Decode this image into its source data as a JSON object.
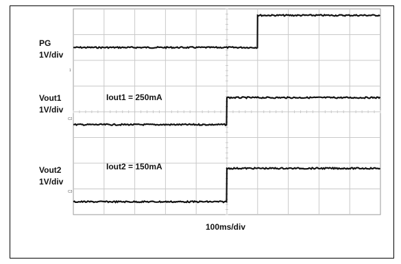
{
  "chart_data": {
    "type": "line",
    "channels": [
      {
        "name": "PG",
        "scale": "1V/div",
        "marker": "1",
        "annotation": "",
        "offset_div": 6.5,
        "steps": [
          [
            0,
            0
          ],
          [
            6,
            1.25
          ],
          [
            10,
            1.25
          ]
        ]
      },
      {
        "name": "Vout1",
        "scale": "1V/div",
        "marker": "C2",
        "annotation": "Iout1 = 250mA",
        "offset_div": 3.5,
        "steps": [
          [
            0,
            0
          ],
          [
            5,
            1.05
          ],
          [
            10,
            1.05
          ]
        ]
      },
      {
        "name": "Vout2",
        "scale": "1V/div",
        "marker": "C3",
        "annotation": "Iout2 = 150mA",
        "offset_div": 0.5,
        "steps": [
          [
            0,
            0
          ],
          [
            5,
            1.3
          ],
          [
            10,
            1.3
          ]
        ]
      }
    ],
    "x_divisions": 10,
    "y_divisions": 8,
    "xlabel": "100ms/div",
    "grid": true
  }
}
